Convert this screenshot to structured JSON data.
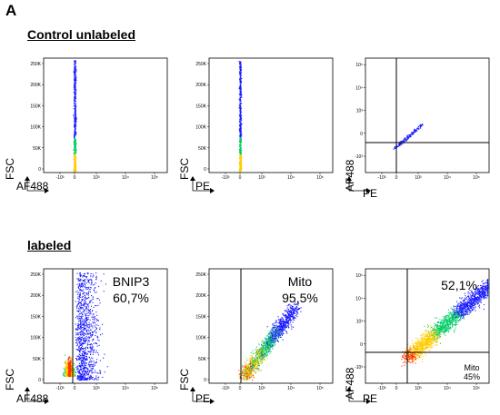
{
  "panel_letter": "A",
  "sections": {
    "control": "Control unlabeled",
    "labeled": "labeled"
  },
  "axis_labels": {
    "fsc": "FSC",
    "af488": "AF488",
    "pe": "PE"
  },
  "annotations": {
    "bnip3_name": "BNIP3",
    "bnip3_pct": "60,7%",
    "mito_name": "Mito",
    "mito_pct": "95,5%",
    "quad_pct": "52,1%",
    "mito_small_name": "Mito",
    "mito_small_pct": "45%"
  },
  "colors": {
    "low_density": "#1a1aff",
    "mid_density": "#00cc66",
    "high_density": "#ffcc00",
    "peak_density": "#ff3300"
  },
  "chart_data": [
    {
      "type": "scatter",
      "panel": "control-af488",
      "xlabel": "AF488",
      "ylabel": "FSC",
      "yticks": [
        "0",
        "50K",
        "100K",
        "150K",
        "200K",
        "250K"
      ],
      "xticks": [
        "-10³",
        "0",
        "10³",
        "10⁴",
        "10⁵"
      ],
      "ylim": [
        0,
        262144
      ],
      "xlim": [
        -3,
        5.3
      ],
      "population": {
        "x_center": 0,
        "x_spread": 0.05,
        "y_range": [
          0,
          262144
        ]
      }
    },
    {
      "type": "scatter",
      "panel": "control-pe",
      "xlabel": "PE",
      "ylabel": "FSC",
      "yticks": [
        "0",
        "50K",
        "100K",
        "150K",
        "200K",
        "250K"
      ],
      "xticks": [
        "-10³",
        "0",
        "10³",
        "10⁴",
        "10⁵"
      ],
      "ylim": [
        0,
        262144
      ],
      "xlim": [
        -3,
        5.3
      ],
      "population": {
        "x_center": 0,
        "x_spread": 0.05,
        "y_range": [
          0,
          262144
        ]
      }
    },
    {
      "type": "scatter",
      "panel": "control-pe-af488",
      "xlabel": "PE",
      "ylabel": "AF488",
      "yticks": [
        "-10³",
        "0",
        "10³",
        "10⁴",
        "10⁵"
      ],
      "xticks": [
        "-10³",
        "0",
        "10³",
        "10⁴",
        "10⁵"
      ],
      "xlim": [
        -3,
        5.3
      ],
      "ylim": [
        -3,
        5.3
      ],
      "gates": {
        "x": 0,
        "y": 0
      }
    },
    {
      "type": "scatter",
      "panel": "labeled-af488",
      "xlabel": "AF488",
      "ylabel": "FSC",
      "yticks": [
        "0",
        "50K",
        "100K",
        "150K",
        "200K",
        "250K"
      ],
      "xticks": [
        "-10³",
        "0",
        "10³",
        "10⁴",
        "10⁵"
      ],
      "ylim": [
        0,
        262144
      ],
      "xlim": [
        -3,
        5.3
      ],
      "gates": {
        "x": 0
      },
      "gated_percent": 60.7
    },
    {
      "type": "scatter",
      "panel": "labeled-pe",
      "xlabel": "PE",
      "ylabel": "FSC",
      "yticks": [
        "0",
        "50K",
        "100K",
        "150K",
        "200K",
        "250K"
      ],
      "xticks": [
        "-10³",
        "0",
        "10³",
        "10⁴",
        "10⁵"
      ],
      "ylim": [
        0,
        262144
      ],
      "xlim": [
        -3,
        5.3
      ],
      "gates": {
        "x": 0
      },
      "gated_percent": 95.5
    },
    {
      "type": "scatter",
      "panel": "labeled-pe-af488",
      "xlabel": "PE",
      "ylabel": "AF488",
      "yticks": [
        "-10³",
        "0",
        "10³",
        "10⁴",
        "10⁵"
      ],
      "xticks": [
        "-10³",
        "0",
        "10³",
        "10⁴",
        "10⁵"
      ],
      "xlim": [
        -3,
        5.3
      ],
      "ylim": [
        -3,
        5.3
      ],
      "gates": {
        "x": 0,
        "y": 0
      },
      "quadrant_percents": {
        "upper_right": 52.1,
        "lower_right": 45
      }
    }
  ]
}
